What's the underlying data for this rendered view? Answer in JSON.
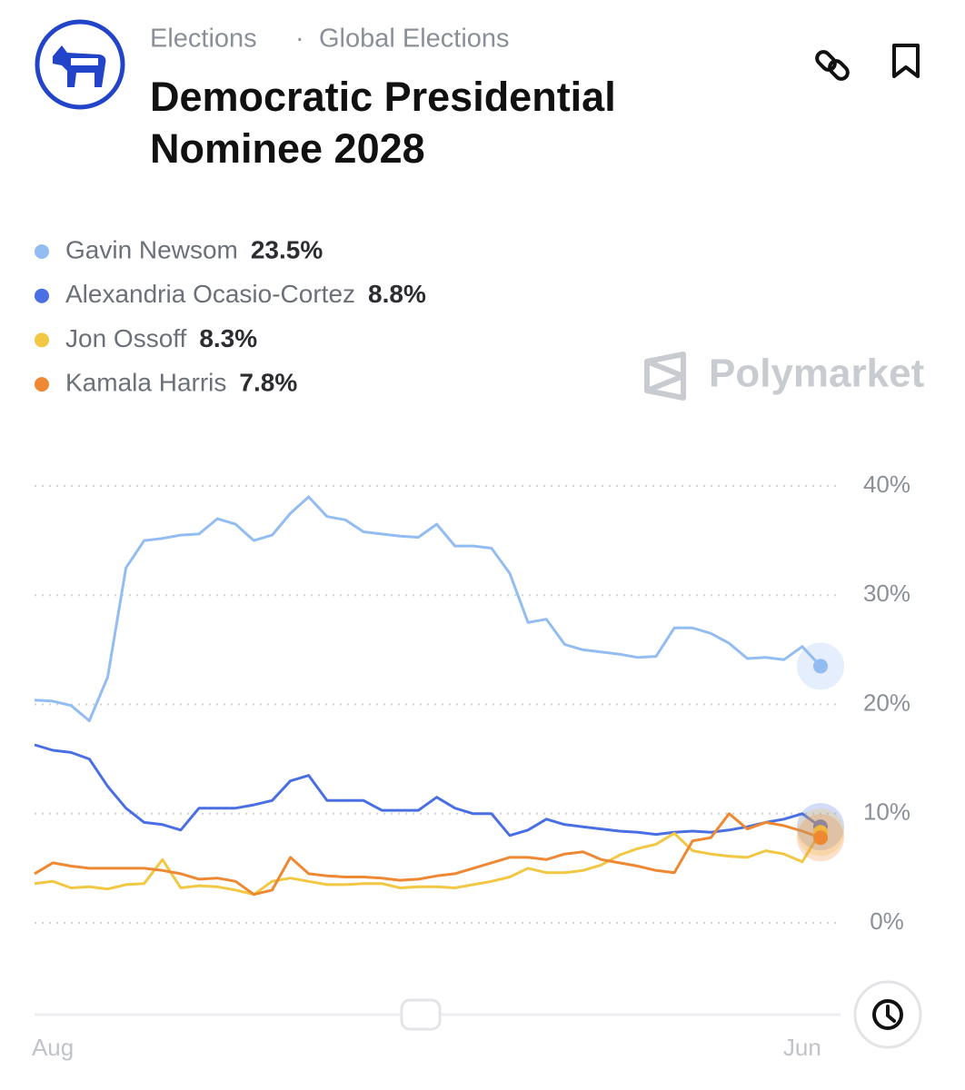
{
  "header": {
    "breadcrumb": [
      "Elections",
      "·",
      "Global Elections"
    ],
    "title_lines": [
      "Democratic Presidential",
      "Nominee 2028"
    ]
  },
  "watermark": "Polymarket",
  "chart_data": {
    "type": "line",
    "categories": [
      null,
      "Aug",
      null,
      null,
      null,
      null,
      null,
      null,
      null,
      null,
      null,
      null,
      null,
      null,
      null,
      null,
      null,
      null,
      null,
      null,
      null,
      null,
      null,
      null,
      null,
      null,
      null,
      null,
      null,
      null,
      null,
      null,
      null,
      null,
      null,
      null,
      null,
      null,
      null,
      null,
      null,
      null,
      "Jun",
      null
    ],
    "series": [
      {
        "name": "Gavin Newsom",
        "color": "#93bdf2",
        "current": {
          "value": 23.5,
          "label": "23.5%"
        },
        "values": [
          20.4,
          20.3,
          19.9,
          18.5,
          22.5,
          32.5,
          35,
          35.2,
          35.5,
          35.6,
          37,
          36.5,
          35,
          35.5,
          37.5,
          39,
          37.2,
          36.9,
          35.8,
          35.6,
          35.4,
          35.3,
          36.5,
          34.5,
          34.5,
          34.3,
          32,
          27.5,
          27.8,
          25.5,
          25,
          24.8,
          24.6,
          24.3,
          24.4,
          27,
          27,
          26.5,
          25.6,
          24.2,
          24.3,
          24.1,
          25.3,
          23.5
        ]
      },
      {
        "name": "Alexandria Ocasio-Cortez",
        "color": "#4a6fe3",
        "current": {
          "value": 8.8,
          "label": "8.8%"
        },
        "values": [
          16.3,
          15.8,
          15.6,
          15,
          12.5,
          10.5,
          9.2,
          9,
          8.5,
          10.5,
          10.5,
          10.5,
          10.8,
          11.2,
          13,
          13.5,
          11.2,
          11.2,
          11.2,
          10.3,
          10.3,
          10.3,
          11.5,
          10.5,
          10,
          10,
          8,
          8.5,
          9.5,
          9,
          8.8,
          8.6,
          8.4,
          8.3,
          8.1,
          8.3,
          8.4,
          8.3,
          8.5,
          8.8,
          9.2,
          9.5,
          10,
          8.8
        ]
      },
      {
        "name": "Jon Ossoff",
        "color": "#f2c744",
        "current": {
          "value": 8.3,
          "label": "8.3%"
        },
        "values": [
          3.6,
          3.8,
          3.2,
          3.3,
          3.1,
          3.5,
          3.6,
          5.8,
          3.2,
          3.4,
          3.3,
          3,
          2.6,
          3.8,
          4.1,
          3.8,
          3.5,
          3.5,
          3.6,
          3.6,
          3.2,
          3.3,
          3.3,
          3.2,
          3.5,
          3.8,
          4.2,
          5,
          4.6,
          4.6,
          4.8,
          5.3,
          6.2,
          6.8,
          7.2,
          8.2,
          6.6,
          6.3,
          6.1,
          6,
          6.6,
          6.3,
          5.6,
          8.3
        ]
      },
      {
        "name": "Kamala Harris",
        "color": "#ee8833",
        "current": {
          "value": 7.8,
          "label": "7.8%"
        },
        "values": [
          4.5,
          5.5,
          5.2,
          5,
          5,
          5,
          5,
          4.8,
          4.5,
          4,
          4.1,
          3.8,
          2.6,
          3,
          6,
          4.5,
          4.3,
          4.2,
          4.2,
          4.1,
          3.9,
          4,
          4.3,
          4.5,
          5,
          5.5,
          6,
          6,
          5.8,
          6.3,
          6.5,
          5.8,
          5.5,
          5.2,
          4.8,
          4.6,
          7.5,
          7.8,
          10,
          8.6,
          9.2,
          8.9,
          8.4,
          7.8
        ]
      }
    ],
    "ylim": [
      0,
      40
    ],
    "yticks": [
      {
        "value": 0,
        "label": "0%"
      },
      {
        "value": 10,
        "label": "10%"
      },
      {
        "value": 20,
        "label": "20%"
      },
      {
        "value": 30,
        "label": "30%"
      },
      {
        "value": 40,
        "label": "40%"
      }
    ],
    "grid": true
  }
}
